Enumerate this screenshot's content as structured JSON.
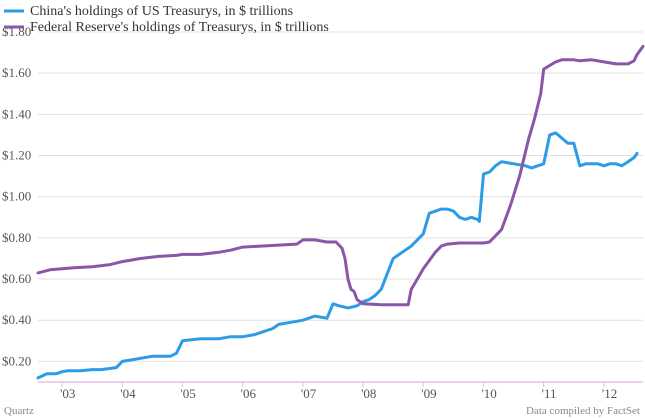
{
  "chart_data": {
    "type": "line",
    "title": "",
    "xlabel": "",
    "ylabel": "",
    "xlim": [
      2002.6,
      2012.65
    ],
    "ylim": [
      0.1,
      1.8
    ],
    "y_ticks": [
      0.2,
      0.4,
      0.6,
      0.8,
      1.0,
      1.2,
      1.4,
      1.6,
      1.8
    ],
    "y_tick_labels": [
      "$0.20",
      "$0.40",
      "$0.60",
      "$0.80",
      "$1.00",
      "$1.20",
      "$1.40",
      "$1.60",
      "$1.80"
    ],
    "x_ticks": [
      2003,
      2004,
      2005,
      2006,
      2007,
      2008,
      2009,
      2010,
      2011,
      2012
    ],
    "x_tick_labels": [
      "'03",
      "'04",
      "'05",
      "'06",
      "'07",
      "'08",
      "'09",
      "'10",
      "'11",
      "'12"
    ],
    "grid": true,
    "legend_position": "top-left",
    "colors": {
      "grid": "#e0e0e0",
      "baseline": "#e19de6",
      "tick": "#cccccc"
    },
    "series": [
      {
        "name": "China's holdings of US Treasurys, in $ trillions",
        "color": "#2d9be6",
        "x": [
          2002.6,
          2002.75,
          2002.9,
          2003.0,
          2003.1,
          2003.3,
          2003.5,
          2003.65,
          2003.9,
          2004.0,
          2004.2,
          2004.4,
          2004.5,
          2004.6,
          2004.8,
          2004.9,
          2005.0,
          2005.3,
          2005.5,
          2005.6,
          2005.8,
          2006.0,
          2006.2,
          2006.5,
          2006.6,
          2006.8,
          2006.9,
          2007.0,
          2007.2,
          2007.4,
          2007.5,
          2007.6,
          2007.75,
          2007.9,
          2008.0,
          2008.1,
          2008.2,
          2008.3,
          2008.5,
          2008.7,
          2008.8,
          2008.9,
          2009.0,
          2009.1,
          2009.3,
          2009.4,
          2009.5,
          2009.6,
          2009.7,
          2009.8,
          2009.9,
          2009.93,
          2010.0,
          2010.1,
          2010.2,
          2010.3,
          2010.5,
          2010.7,
          2010.8,
          2010.9,
          2011.0,
          2011.1,
          2011.2,
          2011.4,
          2011.5,
          2011.6,
          2011.7,
          2011.9,
          2012.0,
          2012.1,
          2012.2,
          2012.3,
          2012.4,
          2012.5,
          2012.55
        ],
        "values": [
          0.12,
          0.14,
          0.14,
          0.15,
          0.155,
          0.155,
          0.16,
          0.16,
          0.17,
          0.2,
          0.21,
          0.22,
          0.225,
          0.225,
          0.225,
          0.24,
          0.3,
          0.31,
          0.31,
          0.31,
          0.32,
          0.32,
          0.33,
          0.36,
          0.38,
          0.39,
          0.395,
          0.4,
          0.42,
          0.41,
          0.48,
          0.47,
          0.46,
          0.47,
          0.49,
          0.5,
          0.52,
          0.55,
          0.7,
          0.74,
          0.76,
          0.79,
          0.82,
          0.92,
          0.94,
          0.94,
          0.93,
          0.9,
          0.89,
          0.9,
          0.89,
          0.88,
          1.11,
          1.12,
          1.15,
          1.17,
          1.16,
          1.15,
          1.14,
          1.15,
          1.16,
          1.3,
          1.31,
          1.26,
          1.26,
          1.15,
          1.16,
          1.16,
          1.15,
          1.16,
          1.16,
          1.15,
          1.17,
          1.19,
          1.21
        ]
      },
      {
        "name": "Federal Reserve's holdings of Treasurys, in $ trillions",
        "color": "#8a56a8",
        "x": [
          2002.6,
          2002.8,
          2003.0,
          2003.2,
          2003.5,
          2003.8,
          2004.0,
          2004.3,
          2004.6,
          2004.9,
          2005.0,
          2005.3,
          2005.6,
          2005.8,
          2006.0,
          2006.3,
          2006.6,
          2006.9,
          2007.0,
          2007.2,
          2007.4,
          2007.55,
          2007.65,
          2007.7,
          2007.75,
          2007.8,
          2007.85,
          2007.9,
          2008.0,
          2008.3,
          2008.5,
          2008.75,
          2008.8,
          2008.9,
          2009.0,
          2009.1,
          2009.2,
          2009.3,
          2009.4,
          2009.6,
          2009.8,
          2010.0,
          2010.1,
          2010.3,
          2010.45,
          2010.6,
          2010.75,
          2010.85,
          2010.95,
          2011.0,
          2011.2,
          2011.3,
          2011.5,
          2011.6,
          2011.8,
          2012.0,
          2012.2,
          2012.4,
          2012.5,
          2012.55,
          2012.65
        ],
        "values": [
          0.63,
          0.645,
          0.65,
          0.655,
          0.66,
          0.67,
          0.685,
          0.7,
          0.71,
          0.715,
          0.72,
          0.72,
          0.73,
          0.74,
          0.755,
          0.76,
          0.765,
          0.77,
          0.79,
          0.79,
          0.78,
          0.78,
          0.75,
          0.7,
          0.6,
          0.55,
          0.54,
          0.5,
          0.48,
          0.475,
          0.475,
          0.475,
          0.55,
          0.6,
          0.65,
          0.69,
          0.73,
          0.76,
          0.77,
          0.775,
          0.775,
          0.775,
          0.78,
          0.84,
          0.96,
          1.1,
          1.28,
          1.38,
          1.5,
          1.62,
          1.655,
          1.665,
          1.665,
          1.66,
          1.665,
          1.655,
          1.645,
          1.645,
          1.66,
          1.69,
          1.73
        ]
      }
    ],
    "footer_left": "Quartz",
    "footer_right": "Data compiled by FactSet"
  }
}
